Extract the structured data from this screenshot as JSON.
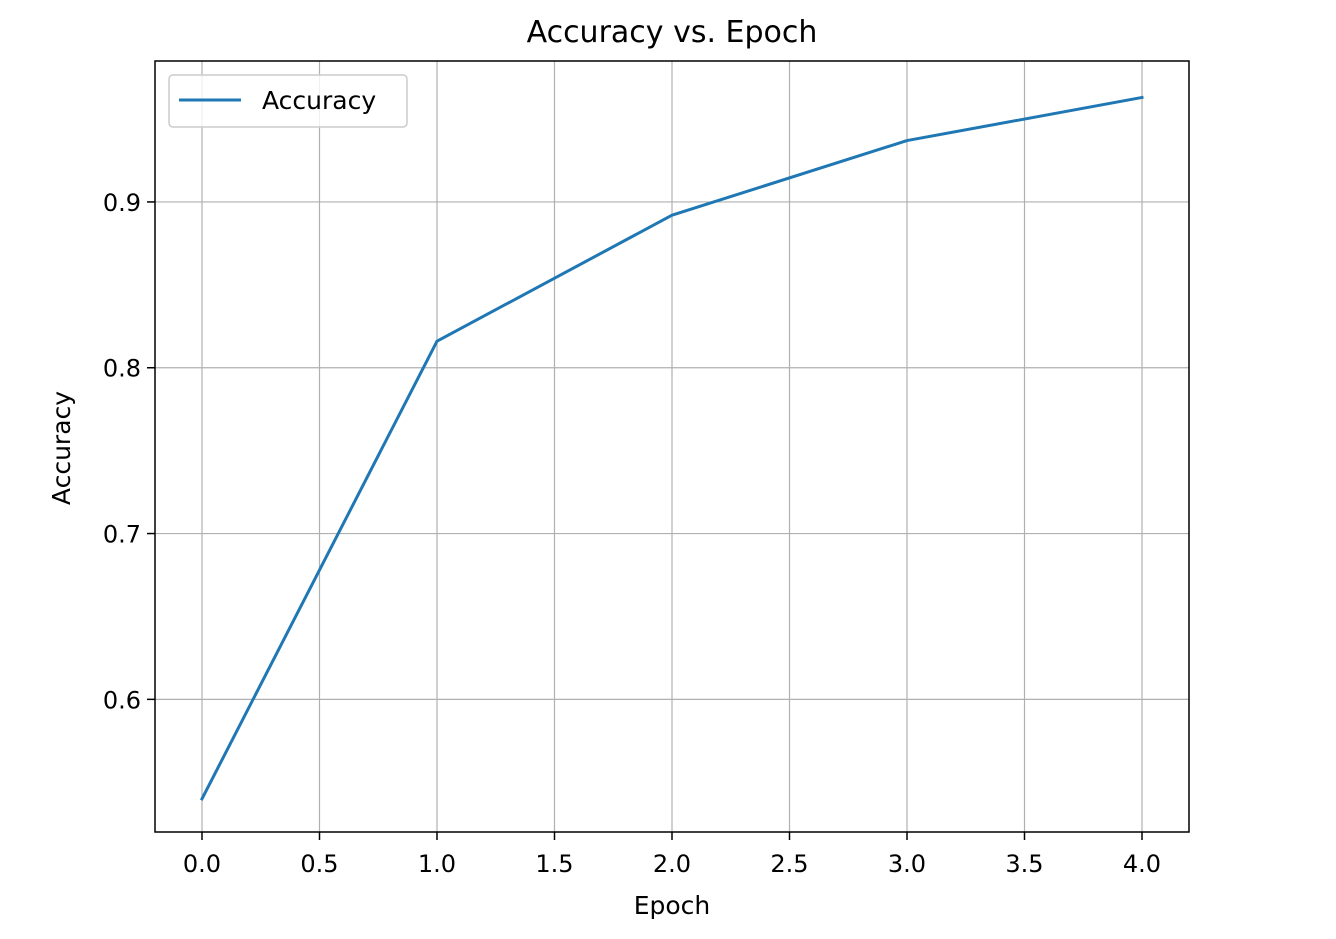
{
  "chart_data": {
    "type": "line",
    "title": "Accuracy vs. Epoch",
    "xlabel": "Epoch",
    "ylabel": "Accuracy",
    "x": [
      0,
      1,
      2,
      3,
      4
    ],
    "series": [
      {
        "name": "Accuracy",
        "values": [
          0.54,
          0.816,
          0.892,
          0.937,
          0.963
        ],
        "color": "#1f77b4"
      }
    ],
    "xlim": [
      -0.2,
      4.2
    ],
    "ylim": [
      0.52,
      0.985
    ],
    "xticks": [
      0.0,
      0.5,
      1.0,
      1.5,
      2.0,
      2.5,
      3.0,
      3.5,
      4.0
    ],
    "xtick_labels": [
      "0.0",
      "0.5",
      "1.0",
      "1.5",
      "2.0",
      "2.5",
      "3.0",
      "3.5",
      "4.0"
    ],
    "yticks": [
      0.6,
      0.7,
      0.8,
      0.9
    ],
    "ytick_labels": [
      "0.6",
      "0.7",
      "0.8",
      "0.9"
    ],
    "grid": true,
    "legend": {
      "position": "upper-left",
      "entries": [
        "Accuracy"
      ]
    }
  }
}
